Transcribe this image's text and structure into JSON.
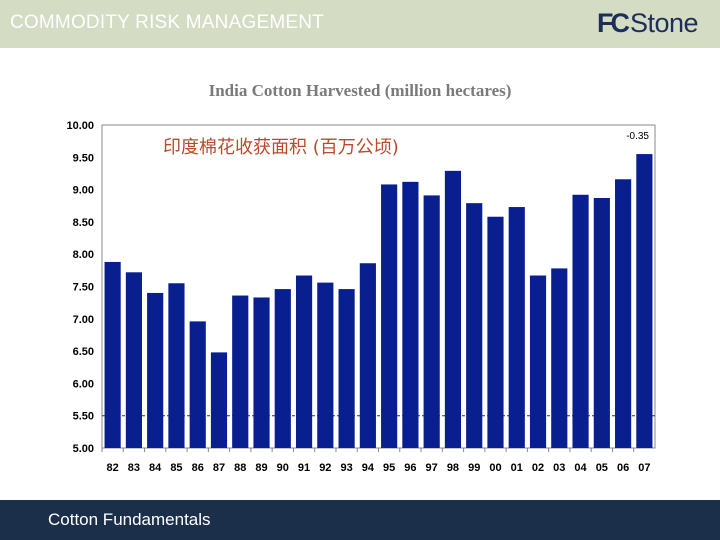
{
  "header": {
    "title": "COMMODITY RISK MANAGEMENT",
    "logo_fc": "FC",
    "logo_stone": "Stone"
  },
  "footer": {
    "text": "Cotton Fundamentals"
  },
  "colors": {
    "bar": "#0a1f8f",
    "header_band": "#d4dcc4",
    "footer_band": "#1c2f4a",
    "subtitle": "#b94a2a",
    "logo": "#1c2f5a"
  },
  "chart_data": {
    "type": "bar",
    "title": "India Cotton Harvested (million hectares)",
    "subtitle_cn": "印度棉花收获面积 (百万公顷)",
    "categories": [
      "82",
      "83",
      "84",
      "85",
      "86",
      "87",
      "88",
      "89",
      "90",
      "91",
      "92",
      "93",
      "94",
      "95",
      "96",
      "97",
      "98",
      "99",
      "00",
      "01",
      "02",
      "03",
      "04",
      "05",
      "06",
      "07"
    ],
    "values": [
      7.88,
      7.72,
      7.4,
      7.55,
      6.96,
      6.48,
      7.36,
      7.33,
      7.46,
      7.67,
      7.56,
      7.46,
      7.86,
      9.08,
      9.12,
      8.91,
      9.29,
      8.79,
      8.58,
      8.73,
      7.67,
      7.78,
      8.92,
      8.87,
      9.16,
      9.55
    ],
    "annotation": "-0.35",
    "ylim": [
      5.0,
      10.0
    ],
    "yticks": [
      "10.00",
      "9.50",
      "9.00",
      "8.50",
      "8.00",
      "7.50",
      "7.00",
      "6.50",
      "6.00",
      "5.50",
      "5.00"
    ],
    "reference_line": 5.5,
    "xlabel": "",
    "ylabel": ""
  }
}
